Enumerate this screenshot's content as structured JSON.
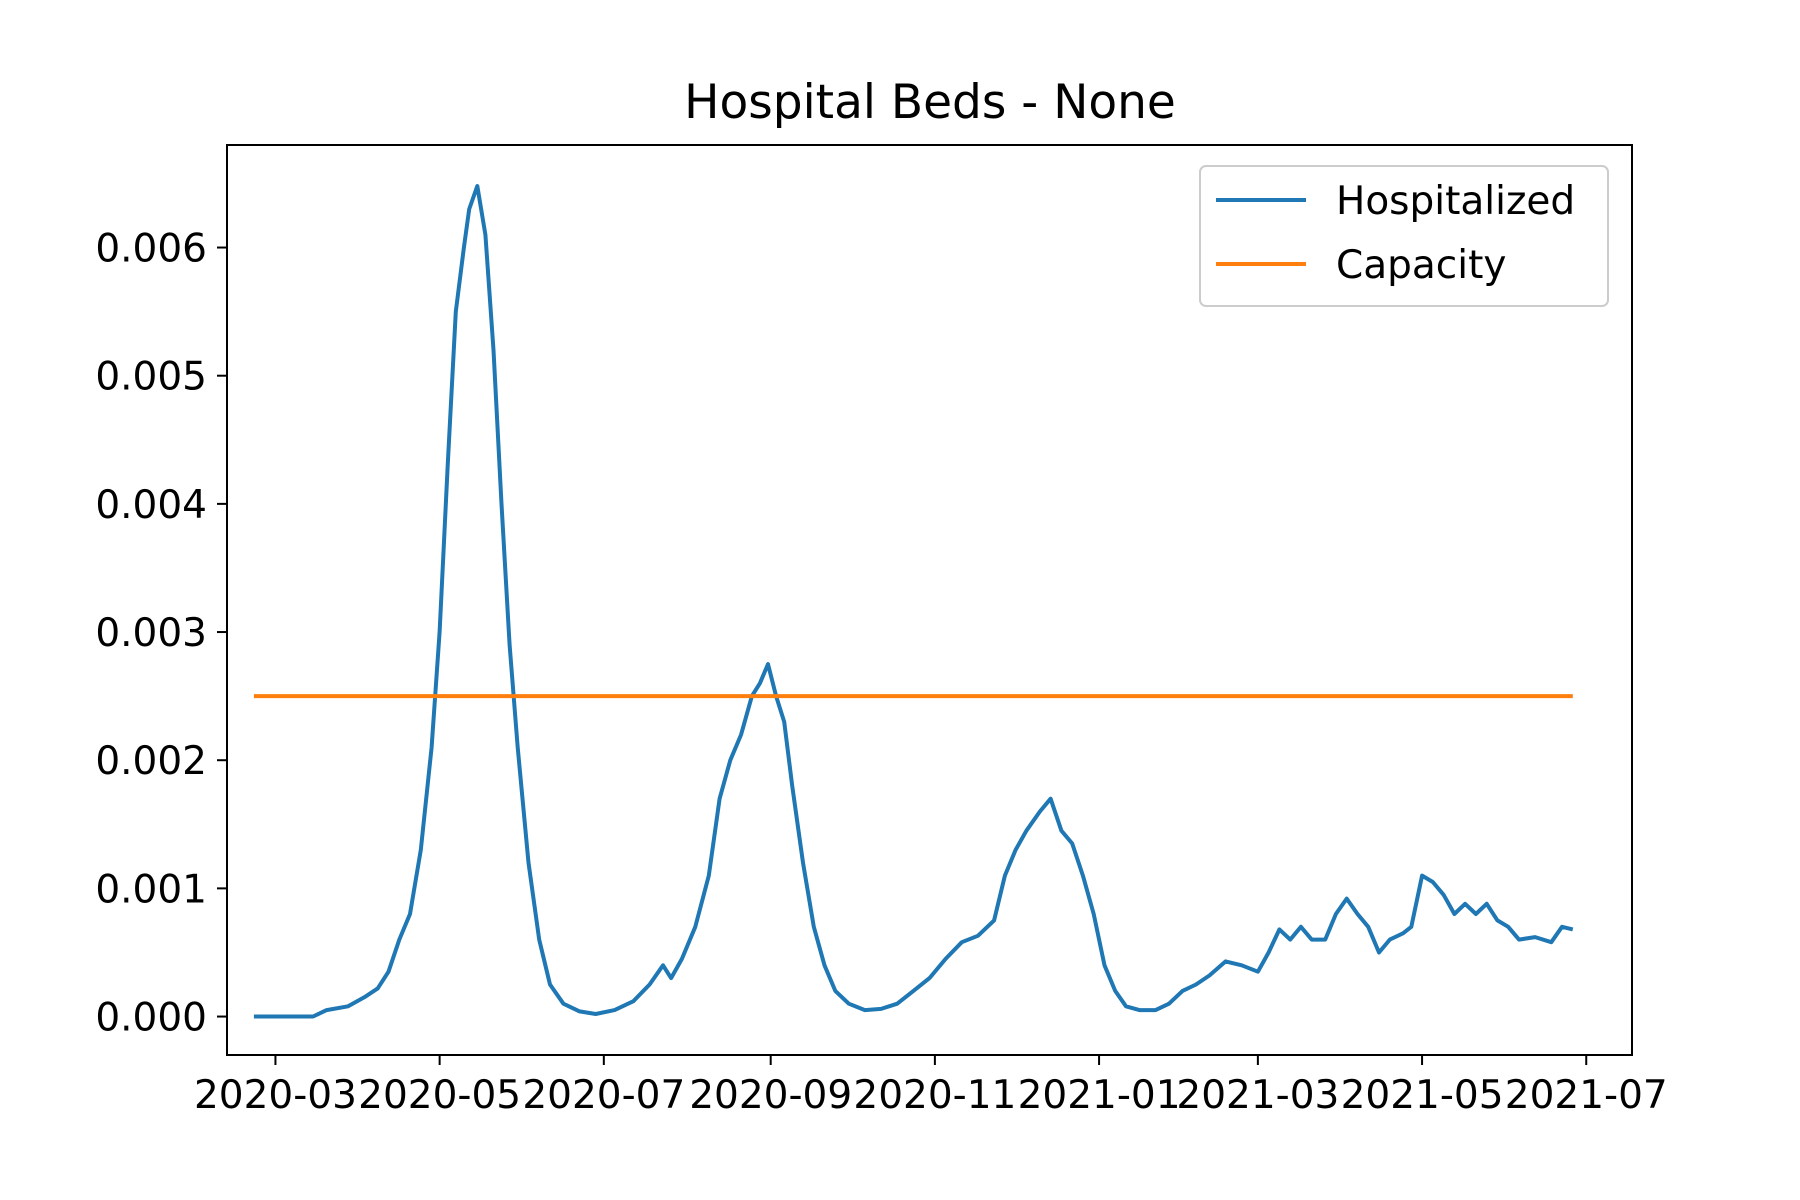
{
  "chart_data": {
    "type": "line",
    "title": "Hospital Beds - None",
    "xlabel": "",
    "ylabel": "",
    "x_range": [
      "2020-02-22",
      "2021-07-08"
    ],
    "xlim": [
      "2020-02-12",
      "2021-07-18"
    ],
    "ylim": [
      -0.0003,
      0.0068
    ],
    "x_ticks": [
      "2020-03",
      "2020-05",
      "2020-07",
      "2020-09",
      "2020-11",
      "2021-01",
      "2021-03",
      "2021-05",
      "2021-07"
    ],
    "y_ticks": [
      "0.000",
      "0.001",
      "0.002",
      "0.003",
      "0.004",
      "0.005",
      "0.006"
    ],
    "grid": false,
    "legend_position": "top-right",
    "series": [
      {
        "name": "Hospitalized",
        "color": "#1f77b4",
        "points": [
          [
            "2020-02-22",
            0.0
          ],
          [
            "2020-03-15",
            0.0
          ],
          [
            "2020-03-20",
            5e-05
          ],
          [
            "2020-03-28",
            8e-05
          ],
          [
            "2020-04-03",
            0.00015
          ],
          [
            "2020-04-08",
            0.00022
          ],
          [
            "2020-04-12",
            0.00035
          ],
          [
            "2020-04-16",
            0.0006
          ],
          [
            "2020-04-20",
            0.0008
          ],
          [
            "2020-04-24",
            0.0013
          ],
          [
            "2020-04-28",
            0.0021
          ],
          [
            "2020-05-01",
            0.003
          ],
          [
            "2020-05-04",
            0.0043
          ],
          [
            "2020-05-07",
            0.0055
          ],
          [
            "2020-05-10",
            0.006
          ],
          [
            "2020-05-12",
            0.0063
          ],
          [
            "2020-05-15",
            0.00648
          ],
          [
            "2020-05-18",
            0.0061
          ],
          [
            "2020-05-21",
            0.0052
          ],
          [
            "2020-05-24",
            0.004
          ],
          [
            "2020-05-27",
            0.0029
          ],
          [
            "2020-05-30",
            0.0021
          ],
          [
            "2020-06-03",
            0.0012
          ],
          [
            "2020-06-07",
            0.0006
          ],
          [
            "2020-06-11",
            0.00025
          ],
          [
            "2020-06-16",
            0.0001
          ],
          [
            "2020-06-22",
            4e-05
          ],
          [
            "2020-06-28",
            2e-05
          ],
          [
            "2020-07-05",
            5e-05
          ],
          [
            "2020-07-12",
            0.00012
          ],
          [
            "2020-07-18",
            0.00025
          ],
          [
            "2020-07-23",
            0.0004
          ],
          [
            "2020-07-26",
            0.0003
          ],
          [
            "2020-07-30",
            0.00045
          ],
          [
            "2020-08-04",
            0.0007
          ],
          [
            "2020-08-09",
            0.0011
          ],
          [
            "2020-08-13",
            0.0017
          ],
          [
            "2020-08-17",
            0.002
          ],
          [
            "2020-08-21",
            0.0022
          ],
          [
            "2020-08-25",
            0.0025
          ],
          [
            "2020-08-28",
            0.0026
          ],
          [
            "2020-08-31",
            0.00275
          ],
          [
            "2020-09-03",
            0.0025
          ],
          [
            "2020-09-06",
            0.0023
          ],
          [
            "2020-09-09",
            0.0018
          ],
          [
            "2020-09-13",
            0.0012
          ],
          [
            "2020-09-17",
            0.0007
          ],
          [
            "2020-09-21",
            0.0004
          ],
          [
            "2020-09-25",
            0.0002
          ],
          [
            "2020-09-30",
            0.0001
          ],
          [
            "2020-10-06",
            5e-05
          ],
          [
            "2020-10-12",
            6e-05
          ],
          [
            "2020-10-18",
            0.0001
          ],
          [
            "2020-10-24",
            0.0002
          ],
          [
            "2020-10-30",
            0.0003
          ],
          [
            "2020-11-05",
            0.00045
          ],
          [
            "2020-11-11",
            0.00058
          ],
          [
            "2020-11-17",
            0.00063
          ],
          [
            "2020-11-23",
            0.00075
          ],
          [
            "2020-11-27",
            0.0011
          ],
          [
            "2020-12-01",
            0.0013
          ],
          [
            "2020-12-05",
            0.00145
          ],
          [
            "2020-12-10",
            0.0016
          ],
          [
            "2020-12-14",
            0.0017
          ],
          [
            "2020-12-18",
            0.00145
          ],
          [
            "2020-12-22",
            0.00135
          ],
          [
            "2020-12-26",
            0.0011
          ],
          [
            "2020-12-30",
            0.0008
          ],
          [
            "2021-01-03",
            0.0004
          ],
          [
            "2021-01-07",
            0.0002
          ],
          [
            "2021-01-11",
            8e-05
          ],
          [
            "2021-01-16",
            5e-05
          ],
          [
            "2021-01-22",
            5e-05
          ],
          [
            "2021-01-27",
            0.0001
          ],
          [
            "2021-02-01",
            0.0002
          ],
          [
            "2021-02-06",
            0.00025
          ],
          [
            "2021-02-11",
            0.00032
          ],
          [
            "2021-02-17",
            0.00043
          ],
          [
            "2021-02-23",
            0.0004
          ],
          [
            "2021-03-01",
            0.00035
          ],
          [
            "2021-03-05",
            0.0005
          ],
          [
            "2021-03-09",
            0.00068
          ],
          [
            "2021-03-13",
            0.0006
          ],
          [
            "2021-03-17",
            0.0007
          ],
          [
            "2021-03-21",
            0.0006
          ],
          [
            "2021-03-26",
            0.0006
          ],
          [
            "2021-03-30",
            0.0008
          ],
          [
            "2021-04-03",
            0.00092
          ],
          [
            "2021-04-07",
            0.0008
          ],
          [
            "2021-04-11",
            0.0007
          ],
          [
            "2021-04-15",
            0.0005
          ],
          [
            "2021-04-19",
            0.0006
          ],
          [
            "2021-04-24",
            0.00065
          ],
          [
            "2021-04-27",
            0.0007
          ],
          [
            "2021-05-01",
            0.0011
          ],
          [
            "2021-05-05",
            0.00105
          ],
          [
            "2021-05-09",
            0.00095
          ],
          [
            "2021-05-13",
            0.0008
          ],
          [
            "2021-05-17",
            0.00088
          ],
          [
            "2021-05-21",
            0.0008
          ],
          [
            "2021-05-25",
            0.00088
          ],
          [
            "2021-05-29",
            0.00075
          ],
          [
            "2021-06-02",
            0.0007
          ],
          [
            "2021-06-06",
            0.0006
          ],
          [
            "2021-06-12",
            0.00062
          ],
          [
            "2021-06-18",
            0.00058
          ],
          [
            "2021-06-22",
            0.0007
          ],
          [
            "2021-06-26",
            0.00068
          ]
        ]
      },
      {
        "name": "Capacity",
        "color": "#ff7f0e",
        "points": [
          [
            "2020-02-22",
            0.0025
          ],
          [
            "2021-06-26",
            0.0025
          ]
        ]
      }
    ]
  }
}
